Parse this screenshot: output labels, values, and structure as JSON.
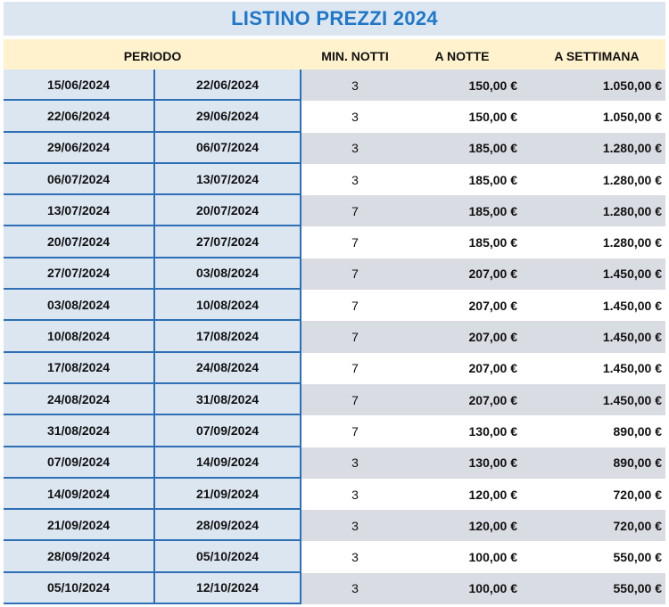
{
  "title": "LISTINO PREZZI 2024",
  "headers": {
    "periodo": "PERIODO",
    "min_notti": "MIN. NOTTI",
    "a_notte": "A NOTTE",
    "a_settimana": "A SETTIMANA"
  },
  "rows": [
    {
      "from": "15/06/2024",
      "to": "22/06/2024",
      "min": "3",
      "notte": "150,00 €",
      "settimana": "1.050,00 €",
      "shaded": true
    },
    {
      "from": "22/06/2024",
      "to": "29/06/2024",
      "min": "3",
      "notte": "150,00 €",
      "settimana": "1.050,00 €",
      "shaded": false
    },
    {
      "from": "29/06/2024",
      "to": "06/07/2024",
      "min": "3",
      "notte": "185,00 €",
      "settimana": "1.280,00 €",
      "shaded": true
    },
    {
      "from": "06/07/2024",
      "to": "13/07/2024",
      "min": "3",
      "notte": "185,00 €",
      "settimana": "1.280,00 €",
      "shaded": false
    },
    {
      "from": "13/07/2024",
      "to": "20/07/2024",
      "min": "7",
      "notte": "185,00 €",
      "settimana": "1.280,00 €",
      "shaded": true
    },
    {
      "from": "20/07/2024",
      "to": "27/07/2024",
      "min": "7",
      "notte": "185,00 €",
      "settimana": "1.280,00 €",
      "shaded": false
    },
    {
      "from": "27/07/2024",
      "to": "03/08/2024",
      "min": "7",
      "notte": "207,00 €",
      "settimana": "1.450,00 €",
      "shaded": true
    },
    {
      "from": "03/08/2024",
      "to": "10/08/2024",
      "min": "7",
      "notte": "207,00 €",
      "settimana": "1.450,00 €",
      "shaded": false
    },
    {
      "from": "10/08/2024",
      "to": "17/08/2024",
      "min": "7",
      "notte": "207,00 €",
      "settimana": "1.450,00 €",
      "shaded": true
    },
    {
      "from": "17/08/2024",
      "to": "24/08/2024",
      "min": "7",
      "notte": "207,00 €",
      "settimana": "1.450,00 €",
      "shaded": false
    },
    {
      "from": "24/08/2024",
      "to": "31/08/2024",
      "min": "7",
      "notte": "207,00 €",
      "settimana": "1.450,00 €",
      "shaded": true
    },
    {
      "from": "31/08/2024",
      "to": "07/09/2024",
      "min": "7",
      "notte": "130,00 €",
      "settimana": "890,00 €",
      "shaded": false
    },
    {
      "from": "07/09/2024",
      "to": "14/09/2024",
      "min": "3",
      "notte": "130,00 €",
      "settimana": "890,00 €",
      "shaded": true
    },
    {
      "from": "14/09/2024",
      "to": "21/09/2024",
      "min": "3",
      "notte": "120,00 €",
      "settimana": "720,00 €",
      "shaded": false
    },
    {
      "from": "21/09/2024",
      "to": "28/09/2024",
      "min": "3",
      "notte": "120,00 €",
      "settimana": "720,00 €",
      "shaded": true
    },
    {
      "from": "28/09/2024",
      "to": "05/10/2024",
      "min": "3",
      "notte": "100,00 €",
      "settimana": "550,00 €",
      "shaded": false
    },
    {
      "from": "05/10/2024",
      "to": "12/10/2024",
      "min": "3",
      "notte": "100,00 €",
      "settimana": "550,00 €",
      "shaded": true
    }
  ],
  "colors": {
    "title_text": "#1f77c9",
    "title_bg": "#dce6f1",
    "header_bg": "#fff2cc",
    "date_bg": "#dce6f1",
    "row_shade": "#d9dce3",
    "border": "#2e6fb5"
  }
}
